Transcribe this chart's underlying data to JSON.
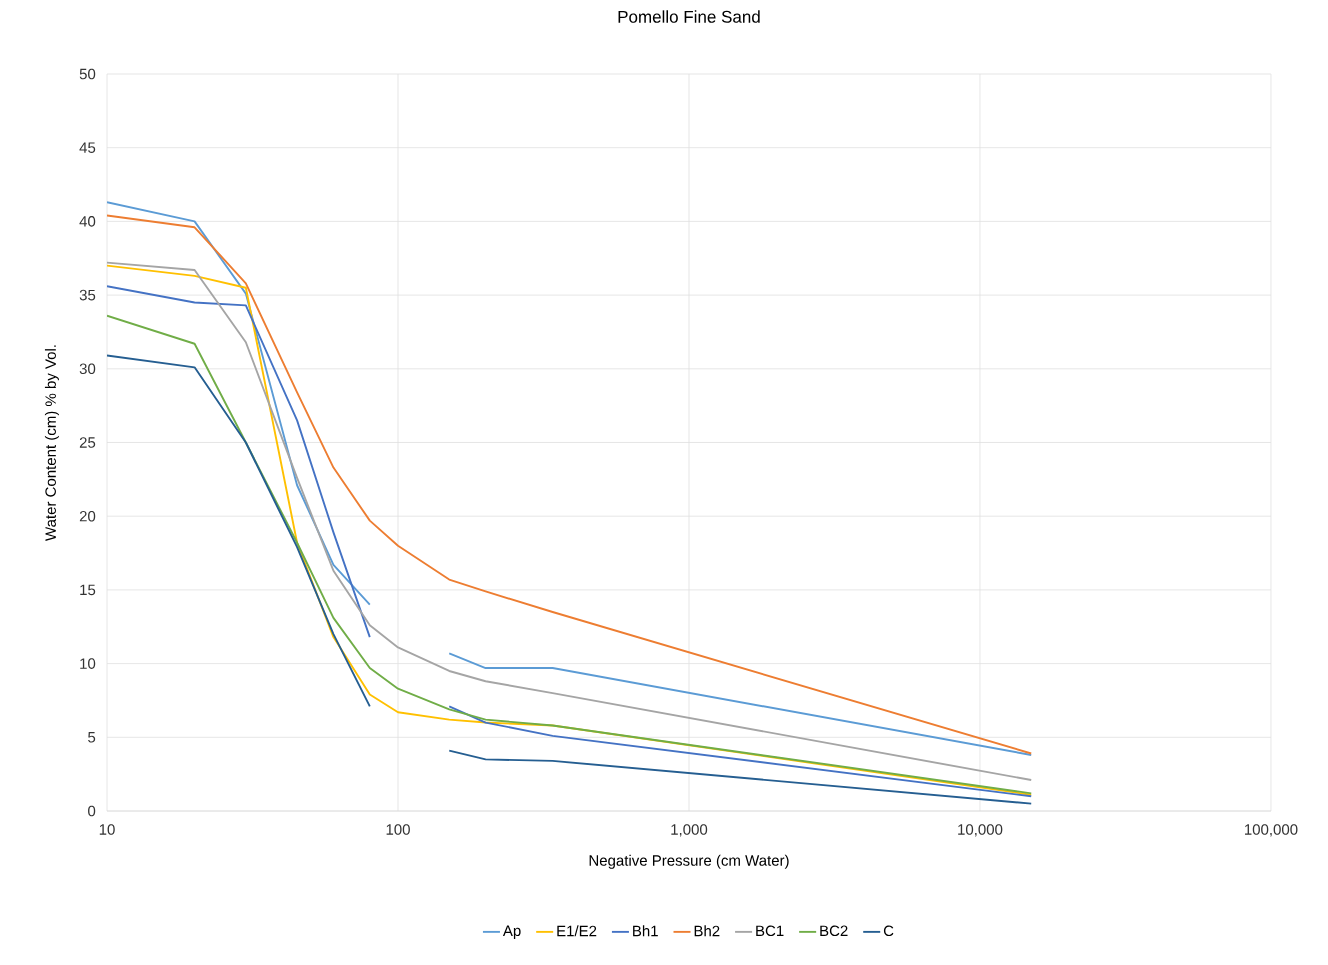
{
  "chart_data": {
    "type": "line",
    "title": "Pomello Fine Sand",
    "xlabel": "Negative Pressure (cm Water)",
    "ylabel": "Water Content (cm) % by Vol.",
    "log": "x",
    "grid": true,
    "legend": "bottom",
    "marker": "none",
    "line_style": "solid",
    "x": [
      10,
      20,
      30,
      45,
      60,
      80,
      100,
      150,
      200,
      340,
      15000
    ],
    "xlim": [
      10,
      100000
    ],
    "xticks": [
      10,
      100,
      {
        "value": 1000,
        "label": "1,000"
      },
      {
        "value": 10000,
        "label": "10,000"
      },
      {
        "value": 100000,
        "label": "100,000"
      }
    ],
    "ylim": [
      0,
      50
    ],
    "yticks": [
      0,
      5,
      10,
      15,
      20,
      25,
      30,
      35,
      40,
      45,
      50
    ],
    "series": [
      {
        "name": "Ap",
        "color": "#5b9bd5",
        "values": [
          41.3,
          40.0,
          35.1,
          22.1,
          16.7,
          14.0,
          null,
          10.7,
          9.7,
          9.7,
          3.8
        ]
      },
      {
        "name": "E1/E2",
        "color": "#ffc000",
        "values": [
          37.0,
          36.3,
          35.5,
          18.2,
          11.8,
          7.9,
          6.7,
          6.2,
          6.0,
          5.8,
          1.1
        ]
      },
      {
        "name": "Bh1",
        "color": "#4472c4",
        "values": [
          35.6,
          34.5,
          34.3,
          26.5,
          18.9,
          11.8,
          null,
          7.1,
          6.0,
          5.1,
          1.0
        ]
      },
      {
        "name": "Bh2",
        "color": "#ed7d31",
        "values": [
          40.4,
          39.6,
          35.8,
          28.4,
          23.3,
          19.7,
          18.0,
          15.7,
          14.9,
          13.5,
          3.9
        ]
      },
      {
        "name": "BC1",
        "color": "#a5a5a5",
        "values": [
          37.2,
          36.7,
          31.8,
          22.6,
          16.3,
          12.6,
          11.1,
          9.5,
          8.8,
          8.0,
          2.1
        ]
      },
      {
        "name": "BC2",
        "color": "#70ad47",
        "values": [
          33.6,
          31.7,
          25.0,
          18.2,
          13.1,
          9.7,
          8.3,
          6.9,
          6.2,
          5.8,
          1.2
        ]
      },
      {
        "name": "C",
        "color": "#255e91",
        "values": [
          30.9,
          30.1,
          25.0,
          17.9,
          12.0,
          7.1,
          null,
          4.1,
          3.5,
          3.4,
          0.5
        ]
      }
    ]
  }
}
